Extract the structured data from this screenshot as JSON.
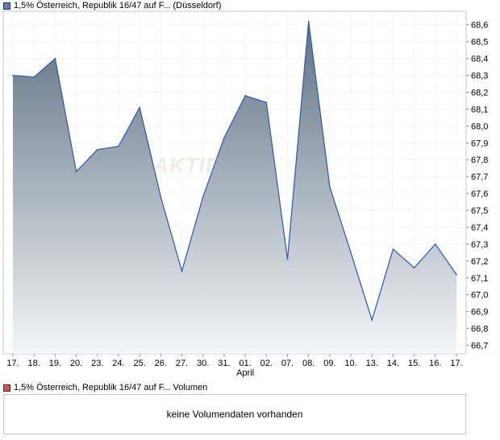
{
  "legend": {
    "main_label": "1,5% Österreich, Republik 16/47 auf F... (Düsseldorf)",
    "main_color": "#5b7fb6",
    "volume_label": "1,5% Österreich, Republik 16/47 auf F... Volumen",
    "volume_color": "#d9534f"
  },
  "volume": {
    "empty_message": "keine Volumendaten vorhanden"
  },
  "chart_data": {
    "type": "area",
    "x": [
      "17.",
      "18.",
      "19.",
      "20.",
      "23.",
      "24.",
      "25.",
      "26.",
      "27.",
      "30.",
      "31.",
      "01.",
      "02.",
      "07.",
      "08.",
      "09.",
      "10.",
      "13.",
      "14.",
      "15.",
      "16.",
      "17."
    ],
    "month_label": "April",
    "month_label_under": "01.",
    "series": [
      {
        "values": [
          68.3,
          68.29,
          68.4,
          67.73,
          67.86,
          67.88,
          68.11,
          67.58,
          67.14,
          67.58,
          67.93,
          68.18,
          68.14,
          67.21,
          68.62,
          67.64,
          67.25,
          66.85,
          67.27,
          67.16,
          67.3,
          67.12
        ]
      }
    ],
    "y_ticks": [
      "68,6",
      "68,5",
      "68,4",
      "68,3",
      "68,2",
      "68,1",
      "68,0",
      "67,9",
      "67,8",
      "67,7",
      "67,6",
      "67,5",
      "67,4",
      "67,3",
      "67,2",
      "67,1",
      "67,0",
      "66,9",
      "66,8",
      "66,7"
    ],
    "ylim": [
      66.65,
      68.68
    ],
    "y_axis_side": "right",
    "line_color": "#2a56b8",
    "fill_top_color": "#5f7282",
    "fill_bottom_color": "#f4f5f8",
    "grid": true,
    "watermark": "AKTIE"
  }
}
